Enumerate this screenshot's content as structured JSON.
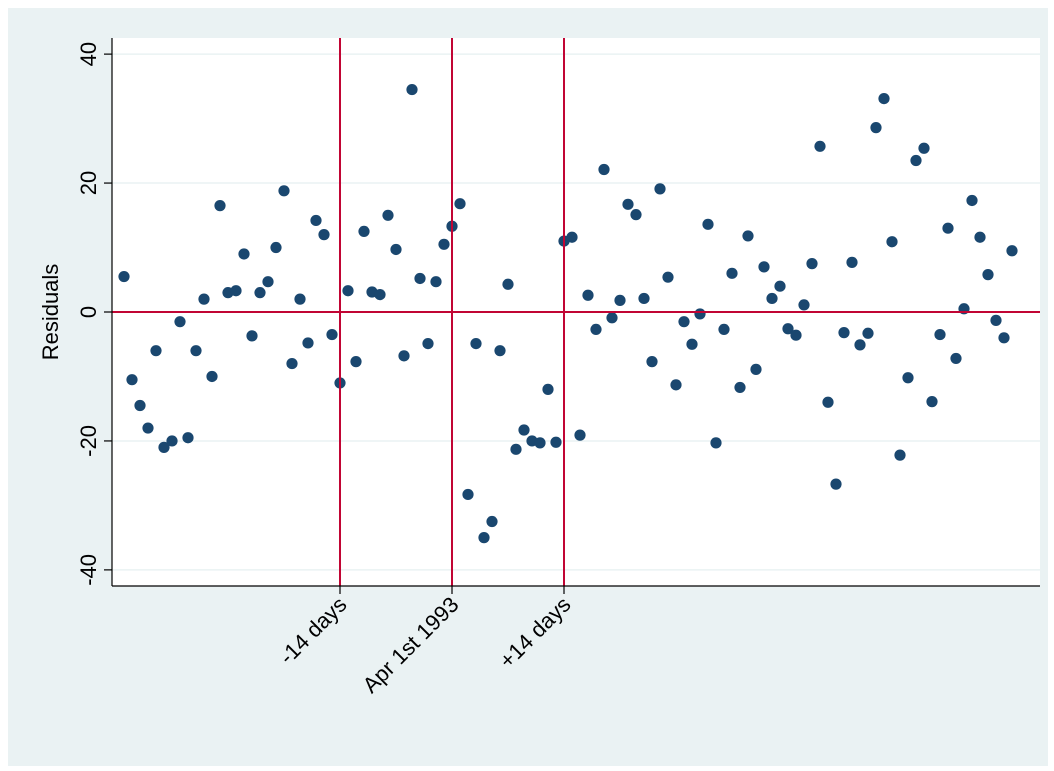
{
  "chart_data": {
    "type": "scatter",
    "title": "",
    "xlabel": "",
    "ylabel": "Residuals",
    "ylim": [
      -42.5,
      42.5
    ],
    "xlim": [
      -42.5,
      73.5
    ],
    "grid": true,
    "colors": {
      "marker": "#1a476f",
      "reference": "#c10534",
      "plot_background": "#ffffff",
      "figure_background": "#eaf2f3",
      "grid": "#eaf2f3"
    },
    "yticks": [
      {
        "value": 40,
        "label": "40"
      },
      {
        "value": 20,
        "label": "20"
      },
      {
        "value": 0,
        "label": "0"
      },
      {
        "value": -20,
        "label": "-20"
      },
      {
        "value": -40,
        "label": "-40"
      }
    ],
    "xticks": [
      {
        "value": -14,
        "label": "-14 days"
      },
      {
        "value": 0,
        "label": "Apr 1st 1993"
      },
      {
        "value": 14,
        "label": "+14 days"
      }
    ],
    "reference_lines": {
      "vertical_x": [
        -14,
        0,
        14
      ],
      "horizontal_y": [
        0
      ]
    },
    "series": [
      {
        "points": [
          [
            -41,
            5.5
          ],
          [
            -40,
            -10.5
          ],
          [
            -39,
            -14.5
          ],
          [
            -38,
            -18
          ],
          [
            -37,
            -6
          ],
          [
            -36,
            -21
          ],
          [
            -35,
            -20
          ],
          [
            -34,
            -1.5
          ],
          [
            -33,
            -19.5
          ],
          [
            -32,
            -6
          ],
          [
            -31,
            2
          ],
          [
            -30,
            -10
          ],
          [
            -29,
            16.5
          ],
          [
            -28,
            3
          ],
          [
            -27,
            3.3
          ],
          [
            -26,
            9
          ],
          [
            -25,
            -3.7
          ],
          [
            -24,
            3
          ],
          [
            -23,
            4.7
          ],
          [
            -22,
            10
          ],
          [
            -21,
            18.8
          ],
          [
            -20,
            -8
          ],
          [
            -19,
            2
          ],
          [
            -18,
            -4.8
          ],
          [
            -17,
            14.2
          ],
          [
            -16,
            12
          ],
          [
            -15,
            -3.5
          ],
          [
            -14,
            -11
          ],
          [
            -13,
            3.3
          ],
          [
            -12,
            -7.7
          ],
          [
            -11,
            12.5
          ],
          [
            -10,
            3.1
          ],
          [
            -9,
            2.7
          ],
          [
            -8,
            15
          ],
          [
            -7,
            9.7
          ],
          [
            -6,
            -6.8
          ],
          [
            -5,
            34.5
          ],
          [
            -4,
            5.2
          ],
          [
            -3,
            -4.9
          ],
          [
            -2,
            4.7
          ],
          [
            -1,
            10.5
          ],
          [
            0,
            13.3
          ],
          [
            1,
            16.8
          ],
          [
            2,
            -28.3
          ],
          [
            3,
            -4.9
          ],
          [
            4,
            -35
          ],
          [
            5,
            -32.5
          ],
          [
            6,
            -6
          ],
          [
            7,
            4.3
          ],
          [
            8,
            -21.3
          ],
          [
            9,
            -18.3
          ],
          [
            10,
            -20
          ],
          [
            11,
            -20.3
          ],
          [
            12,
            -12
          ],
          [
            13,
            -20.2
          ],
          [
            14,
            11
          ],
          [
            15,
            11.6
          ],
          [
            16,
            -19.1
          ],
          [
            17,
            2.6
          ],
          [
            18,
            -2.7
          ],
          [
            19,
            22.1
          ],
          [
            20,
            -0.9
          ],
          [
            21,
            1.8
          ],
          [
            22,
            16.7
          ],
          [
            23,
            15.1
          ],
          [
            24,
            2.1
          ],
          [
            25,
            -7.7
          ],
          [
            26,
            19.1
          ],
          [
            27,
            5.4
          ],
          [
            28,
            -11.3
          ],
          [
            29,
            -1.5
          ],
          [
            30,
            -5
          ],
          [
            31,
            -0.3
          ],
          [
            32,
            13.6
          ],
          [
            33,
            -20.3
          ],
          [
            34,
            -2.7
          ],
          [
            35,
            6
          ],
          [
            36,
            -11.7
          ],
          [
            37,
            11.8
          ],
          [
            38,
            -8.9
          ],
          [
            39,
            7
          ],
          [
            40,
            2.1
          ],
          [
            41,
            4
          ],
          [
            42,
            -2.6
          ],
          [
            43,
            -3.6
          ],
          [
            44,
            1.1
          ],
          [
            45,
            7.5
          ],
          [
            46,
            25.7
          ],
          [
            47,
            -14
          ],
          [
            48,
            -26.7
          ],
          [
            49,
            -3.2
          ],
          [
            50,
            7.7
          ],
          [
            51,
            -5.1
          ],
          [
            52,
            -3.3
          ],
          [
            53,
            28.6
          ],
          [
            54,
            33.1
          ],
          [
            55,
            10.9
          ],
          [
            56,
            -22.2
          ],
          [
            57,
            -10.2
          ],
          [
            58,
            23.5
          ],
          [
            59,
            25.4
          ],
          [
            60,
            -13.9
          ],
          [
            61,
            -3.5
          ],
          [
            62,
            13
          ],
          [
            63,
            -7.2
          ],
          [
            64,
            0.5
          ],
          [
            65,
            17.3
          ],
          [
            66,
            11.6
          ],
          [
            67,
            5.8
          ],
          [
            68,
            -1.3
          ],
          [
            69,
            -4
          ],
          [
            70,
            9.5
          ]
        ]
      }
    ]
  }
}
